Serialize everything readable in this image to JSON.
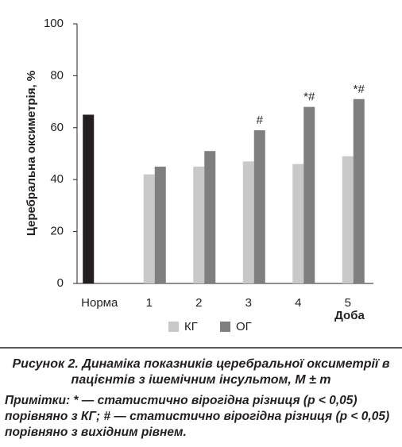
{
  "chart_data": {
    "type": "bar",
    "y_label": "Церебральна оксиметрія, %",
    "x_label": "Доба",
    "categories": [
      "Норма",
      "1",
      "2",
      "3",
      "4",
      "5"
    ],
    "series": [
      {
        "color": "#231f20",
        "values": [
          65,
          null,
          null,
          null,
          null,
          null
        ]
      },
      {
        "name": "КГ",
        "color": "#c8c8c8",
        "values": [
          null,
          42,
          45,
          47,
          46,
          49
        ]
      },
      {
        "name": "ОГ",
        "color": "#7f7f7f",
        "values": [
          null,
          45,
          51,
          59,
          68,
          71
        ],
        "markers": [
          null,
          null,
          null,
          "#",
          "*#",
          "*#"
        ]
      }
    ],
    "ylim": [
      0,
      100
    ],
    "yticks": [
      0,
      20,
      40,
      60,
      80,
      100
    ],
    "grid": false,
    "legend": "bottom"
  },
  "caption": "Рисунок 2. Динаміка показників церебральної оксиметрії в пацієнтів з ішемічним інсультом, M ± m",
  "notes": "Примітки: * — статистично вірогідна різниця (p < 0,05) порівняно з КГ; # — статистично вірогідна різниця (p < 0,05) порівняно з вихідним рівнем."
}
